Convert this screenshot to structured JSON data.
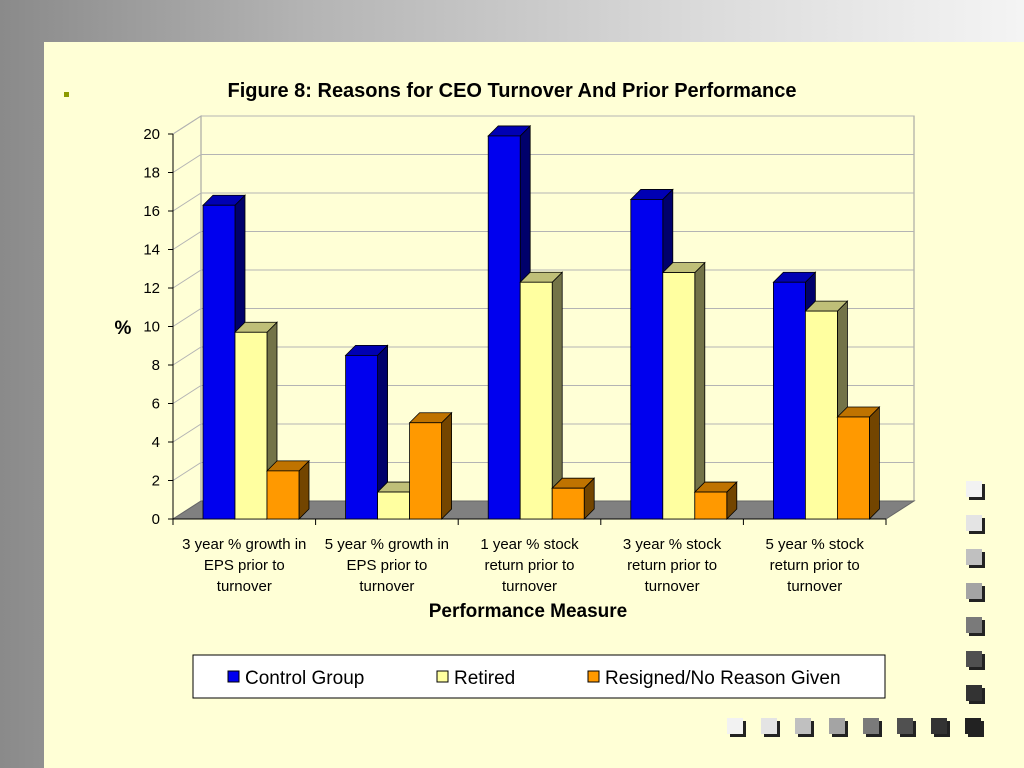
{
  "colors": {
    "slide_background": "#ffffd6",
    "control_group": "#0000ee",
    "retired": "#ffffa0",
    "resigned": "#ff9900",
    "chart_floor": "#808080"
  },
  "chart_data": {
    "type": "bar",
    "title": "Figure 8: Reasons for CEO Turnover And Prior Performance",
    "xlabel": "Performance Measure",
    "ylabel": "%",
    "ylim": [
      0,
      20
    ],
    "yticks": [
      0,
      2,
      4,
      6,
      8,
      10,
      12,
      14,
      16,
      18,
      20
    ],
    "grid": true,
    "style": "3d-clustered-bar",
    "legend_position": "bottom",
    "categories": [
      [
        "3 year % growth in",
        "EPS prior to",
        "turnover"
      ],
      [
        "5 year % growth in",
        "EPS prior to",
        "turnover"
      ],
      [
        "1 year % stock",
        "return prior to",
        "turnover"
      ],
      [
        "3 year % stock",
        "return prior to",
        "turnover"
      ],
      [
        "5 year % stock",
        "return prior to",
        "turnover"
      ]
    ],
    "series": [
      {
        "name": "Control Group",
        "color": "#0000ee",
        "values": [
          16.3,
          8.5,
          19.9,
          16.6,
          12.3
        ]
      },
      {
        "name": "Retired",
        "color": "#ffffa0",
        "values": [
          9.7,
          1.4,
          12.3,
          12.8,
          10.8
        ]
      },
      {
        "name": "Resigned/No Reason Given",
        "color": "#ff9900",
        "values": [
          2.5,
          5.0,
          1.6,
          1.4,
          5.3
        ]
      }
    ]
  },
  "decorative_squares": {
    "column_shades": [
      "#f2f2f2",
      "#e4e4e4",
      "#c0c0c0",
      "#a4a4a4",
      "#7a7a7a",
      "#505050",
      "#333333",
      "#222222"
    ],
    "row_shades": [
      "#f2f2f2",
      "#e4e4e4",
      "#c0c0c0",
      "#a4a4a4",
      "#7a7a7a",
      "#505050",
      "#333333",
      "#222222"
    ]
  }
}
